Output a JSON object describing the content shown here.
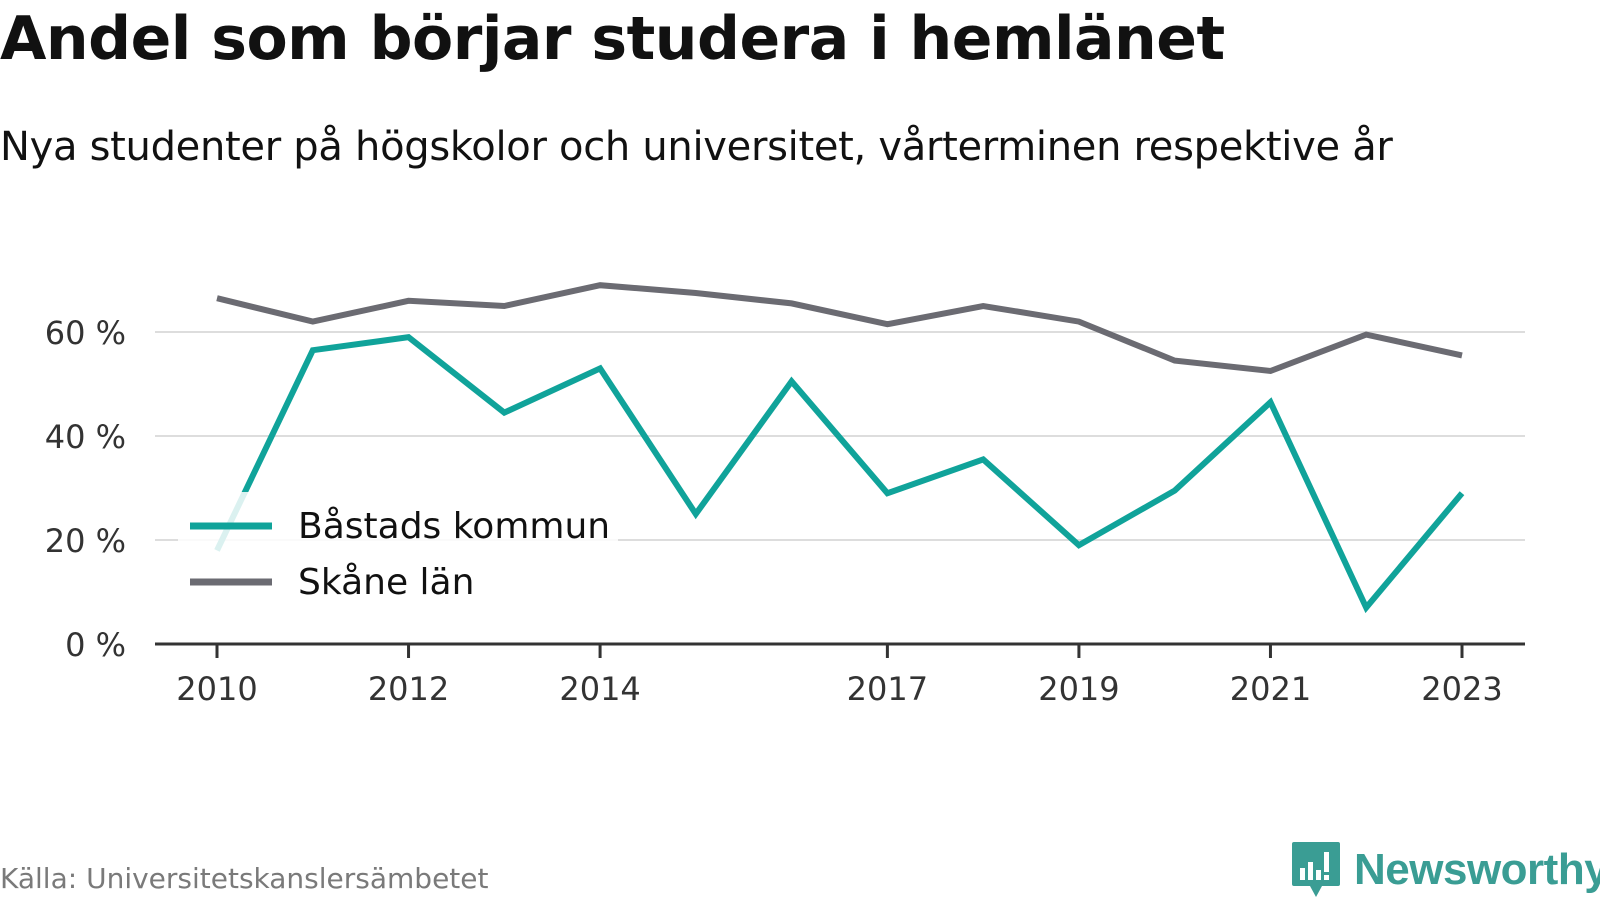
{
  "title": "Andel som börjar studera i hemlänet",
  "subtitle": "Nya studenter på högskolor och universitet, vårterminen respektive år",
  "source": "Källa: Universitetskanslersämbetet",
  "brand": {
    "name": "Newsworthy",
    "icon": "newsworthy-logo-icon",
    "color": "#3a9d94"
  },
  "chart_data": {
    "type": "line",
    "x": [
      2010,
      2011,
      2012,
      2013,
      2014,
      2015,
      2016,
      2017,
      2018,
      2019,
      2020,
      2021,
      2022,
      2023
    ],
    "x_tick_labels": [
      "2010",
      "2012",
      "2014",
      "2017",
      "2019",
      "2021",
      "2023"
    ],
    "x_tick_values": [
      2010,
      2012,
      2014,
      2017,
      2019,
      2021,
      2023
    ],
    "y_tick_labels": [
      "0 %",
      "20 %",
      "40 %",
      "60 %"
    ],
    "y_tick_values": [
      0,
      20,
      40,
      60
    ],
    "ylim": [
      0,
      68
    ],
    "grid": true,
    "legend_position": "bottom-left",
    "series": [
      {
        "name": "Båstads kommun",
        "color": "#10a39a",
        "values": [
          18,
          56.5,
          59,
          44.5,
          53,
          25,
          50.5,
          29,
          35.5,
          19,
          29.5,
          46.5,
          7,
          29
        ]
      },
      {
        "name": "Skåne län",
        "color": "#6b6b72",
        "values": [
          66.5,
          62,
          66,
          65,
          69,
          67.5,
          65.5,
          61.5,
          65,
          62,
          54.5,
          52.5,
          59.5,
          55.5
        ]
      }
    ]
  }
}
